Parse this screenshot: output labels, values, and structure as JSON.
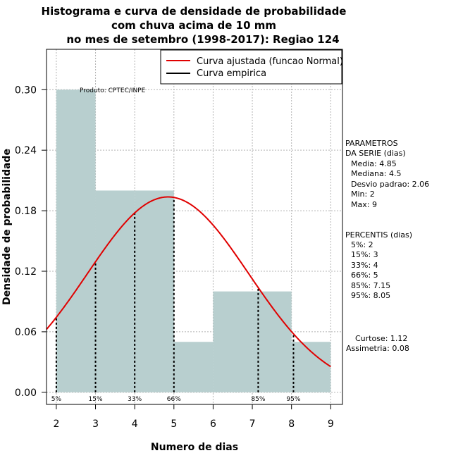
{
  "chart_data": {
    "type": "histogram",
    "title_lines": [
      "Histograma e curva de densidade de probabilidade",
      "com chuva acima de 10 mm",
      "no mes de setembro (1998-2017): Regiao 124"
    ],
    "xlabel": "Numero de dias",
    "ylabel": "Densidade de probabilidade",
    "xlim": [
      1.75,
      9.3
    ],
    "ylim": [
      -0.012,
      0.34
    ],
    "x_ticks": [
      "2",
      "3",
      "4",
      "5",
      "6",
      "7",
      "8",
      "9"
    ],
    "y_ticks": [
      "0.00",
      "0.06",
      "0.12",
      "0.18",
      "0.24",
      "0.30"
    ],
    "bars": [
      {
        "x0": 2,
        "x1": 3,
        "density": 0.3
      },
      {
        "x0": 3,
        "x1": 4,
        "density": 0.2
      },
      {
        "x0": 4,
        "x1": 5,
        "density": 0.2
      },
      {
        "x0": 5,
        "x1": 6,
        "density": 0.05
      },
      {
        "x0": 6,
        "x1": 7,
        "density": 0.1
      },
      {
        "x0": 7,
        "x1": 8,
        "density": 0.1
      },
      {
        "x0": 8,
        "x1": 9,
        "density": 0.05
      }
    ],
    "normal_fit": {
      "mean": 4.85,
      "sd": 2.06
    },
    "percentile_markers": [
      {
        "label": "5%",
        "x": 2
      },
      {
        "label": "15%",
        "x": 3
      },
      {
        "label": "33%",
        "x": 4
      },
      {
        "label": "66%",
        "x": 5
      },
      {
        "label": "85%",
        "x": 7.15
      },
      {
        "label": "95%",
        "x": 8.05
      }
    ],
    "legend": {
      "position": "top-right",
      "entries": [
        {
          "label": "Curva ajustada (funcao Normal)",
          "color": "#e00000"
        },
        {
          "label": "Curva empirica",
          "color": "#000000"
        }
      ]
    },
    "annotation": "Produto: CPTEC/INPE",
    "side_parameters": [
      "PARAMETROS",
      "DA SERIE (dias)",
      "Media: 4.85",
      "Mediana: 4.5",
      "Desvio padrao: 2.06",
      "Min: 2",
      "Max: 9"
    ],
    "side_percentiles": [
      "PERCENTIS (dias)",
      "5%: 2",
      "15%: 3",
      "33%: 4",
      "66%: 5",
      "85%: 7.15",
      "95%: 8.05"
    ],
    "side_stats": [
      "Curtose: 1.12",
      "Assimetria: 0.08"
    ],
    "colors": {
      "bar_fill": "#b8cfcf",
      "fit_curve": "#e00000",
      "grid": "#b4b4b4"
    }
  }
}
